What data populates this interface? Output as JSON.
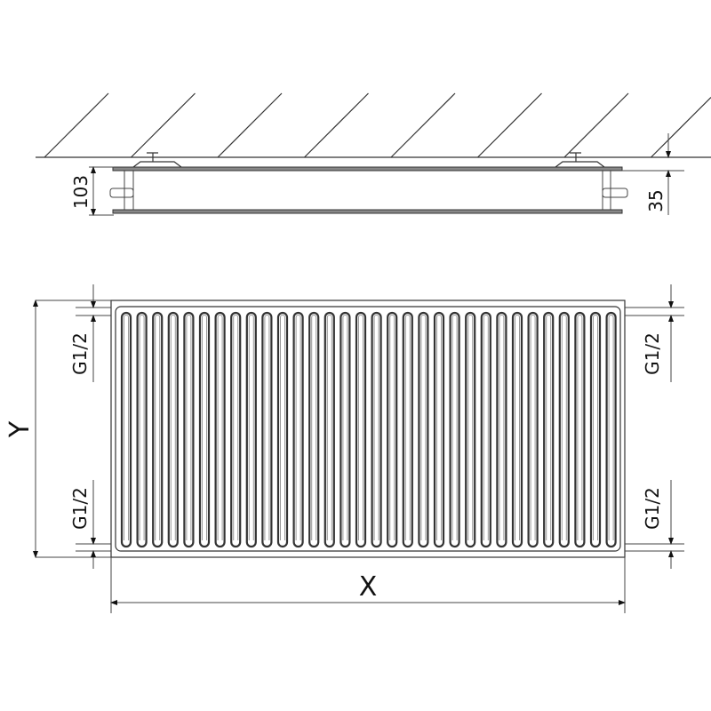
{
  "side_view": {
    "depth_label": "103",
    "wall_gap_label": "35"
  },
  "front_view": {
    "height_label": "Y",
    "width_label": "X",
    "connections": {
      "top_left": "G1/2",
      "bottom_left": "G1/2",
      "top_right": "G1/2",
      "bottom_right": "G1/2"
    }
  },
  "colors": {
    "line": "#333333",
    "background": "#ffffff"
  }
}
